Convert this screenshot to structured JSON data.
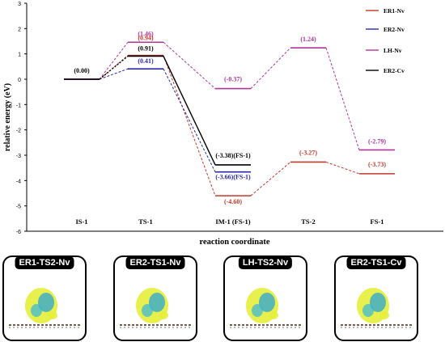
{
  "chart_data": {
    "type": "line",
    "ylabel": "relative energy (eV)",
    "xlabel": "reaction coordinate",
    "ylim": [
      -6,
      3
    ],
    "yticks": [
      "3",
      "2",
      "1",
      "0",
      "-1",
      "-2",
      "-3",
      "-4",
      "-5",
      "-6"
    ],
    "categories": [
      "IS-1",
      "TS-1",
      "IM-1 (FS-1)",
      "TS-2",
      "FS-1"
    ],
    "grid": false,
    "legend_position": "top-right",
    "series": [
      {
        "name": "ER1-Nv",
        "color": "#c0392b",
        "points": [
          {
            "x": "IS-1",
            "y": 0.0
          },
          {
            "x": "TS-1",
            "y": 0.94
          },
          {
            "x": "IM-1 (FS-1)",
            "y": -4.6
          },
          {
            "x": "TS-2",
            "y": -3.27
          },
          {
            "x": "FS-1",
            "y": -3.73
          }
        ],
        "labels": [
          "",
          "(0.94)",
          "(-4.60)",
          "(-3.27)",
          "(-3.73)"
        ]
      },
      {
        "name": "ER2-Nv",
        "color": "#2a2aa8",
        "points": [
          {
            "x": "IS-1",
            "y": 0.0
          },
          {
            "x": "TS-1",
            "y": 0.41
          },
          {
            "x": "IM-1 (FS-1)",
            "y": -3.66
          }
        ],
        "labels": [
          "",
          "(0.41)",
          "(-3.66)(FS-1)"
        ]
      },
      {
        "name": "LH-Nv",
        "color": "#b0359a",
        "points": [
          {
            "x": "IS-1",
            "y": 0.0
          },
          {
            "x": "TS-1",
            "y": 1.46
          },
          {
            "x": "IM-1 (FS-1)",
            "y": -0.37
          },
          {
            "x": "TS-2",
            "y": 1.24
          },
          {
            "x": "FS-1",
            "y": -2.79
          }
        ],
        "labels": [
          "",
          "(1.46)",
          "(-0.37)",
          "(1.24)",
          "(-2.79)"
        ]
      },
      {
        "name": "ER2-Cv",
        "color": "#000000",
        "points": [
          {
            "x": "IS-1",
            "y": 0.0
          },
          {
            "x": "TS-1",
            "y": 0.91
          },
          {
            "x": "IM-1 (FS-1)",
            "y": -3.38
          }
        ],
        "labels": [
          "(0.00)",
          "(0.91)",
          "(-3.38)(FS-1)"
        ]
      }
    ]
  },
  "panels": [
    {
      "title": "ER1-TS2-Nv"
    },
    {
      "title": "ER2-TS1-Nv"
    },
    {
      "title": "LH-TS2-Nv"
    },
    {
      "title": "ER2-TS1-Cv"
    }
  ]
}
